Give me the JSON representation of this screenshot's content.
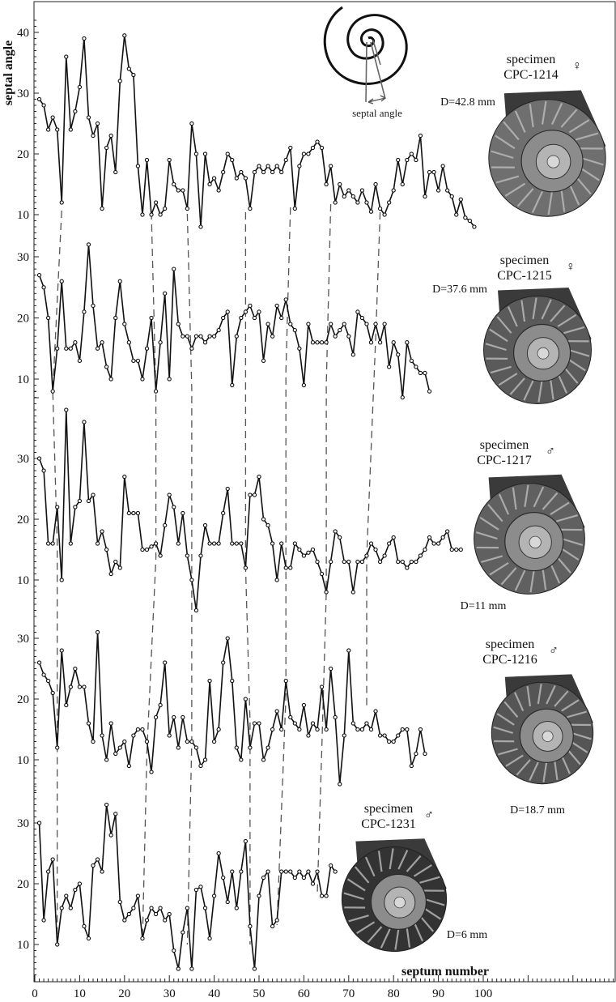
{
  "chart_data": {
    "type": "line",
    "xlabel": "septum number",
    "ylabel": "septal angle",
    "x_ticks": [
      0,
      10,
      20,
      30,
      40,
      50,
      60,
      70,
      80,
      90,
      100
    ],
    "inset_label": "septal angle",
    "specimen_word": "specimen",
    "panels": [
      {
        "id": "CPC-1214",
        "sex": "♀",
        "diameter": "D=42.8 mm",
        "ylim": [
          7,
          42
        ],
        "y_ticks": [
          10,
          20,
          30,
          40
        ],
        "values": [
          29,
          28,
          24,
          26,
          24,
          12,
          36,
          24,
          27,
          31,
          39,
          26,
          23,
          25,
          11,
          21,
          23,
          17,
          32,
          39.5,
          34,
          33,
          18,
          10,
          19,
          10,
          12,
          10,
          11,
          19,
          15,
          14,
          14,
          11,
          25,
          20,
          8,
          20,
          15,
          16,
          14,
          17,
          20,
          19,
          16,
          17,
          16,
          11,
          17,
          18,
          17,
          18,
          17,
          18,
          17,
          19,
          21,
          11,
          18,
          20,
          20,
          21,
          22,
          21,
          15,
          18,
          12,
          15,
          13,
          14,
          13,
          12,
          14,
          12,
          10.5,
          15,
          11,
          10,
          12,
          14,
          19,
          15,
          19,
          20,
          19,
          23,
          13,
          17,
          17,
          14,
          18,
          14,
          13,
          10,
          12.5,
          9.5,
          9,
          8
        ]
      },
      {
        "id": "CPC-1215",
        "sex": "♀",
        "diameter": "D=37.6 mm",
        "ylim": [
          7,
          33
        ],
        "y_ticks": [
          10,
          20,
          30
        ],
        "values": [
          27,
          25,
          20,
          8,
          15,
          26,
          15,
          15,
          16,
          13,
          21,
          32,
          22,
          15,
          16,
          12,
          10,
          20,
          26,
          19,
          16,
          13,
          13,
          10,
          15,
          20,
          8,
          16,
          24,
          10,
          28,
          19,
          17,
          17,
          15,
          17,
          17,
          16,
          17,
          17,
          18,
          20,
          21,
          9,
          17,
          20,
          21,
          22,
          20,
          21,
          13,
          19,
          17,
          22,
          20,
          23,
          19,
          18,
          15,
          9,
          19,
          16,
          16,
          16,
          16,
          19,
          17,
          18,
          19,
          17,
          14,
          21,
          20,
          19,
          16,
          19,
          16,
          19,
          12,
          16,
          14,
          7,
          16,
          13,
          12,
          11,
          11,
          8
        ]
      },
      {
        "id": "CPC-1217",
        "sex": "♂",
        "diameter": "D=11 mm",
        "ylim": [
          4,
          41
        ],
        "y_ticks": [
          10,
          20,
          30
        ],
        "values": [
          30,
          28,
          16,
          16,
          22,
          10,
          38,
          16,
          22,
          23,
          36,
          23,
          24,
          16,
          18,
          15,
          11,
          13,
          12,
          27,
          21,
          21,
          21,
          15,
          15,
          15.5,
          16,
          14,
          19,
          24,
          22,
          16,
          21,
          14,
          10,
          5,
          14,
          19,
          16,
          16,
          16,
          21,
          25,
          16,
          16,
          16,
          12,
          24,
          24,
          27,
          20,
          19,
          16,
          10,
          16,
          12,
          12,
          16,
          15,
          14,
          14.5,
          15,
          13,
          11,
          8,
          13,
          18,
          17,
          13,
          13,
          8,
          13,
          13,
          14,
          16,
          15,
          13,
          14,
          16,
          17,
          13,
          13,
          12,
          13,
          13,
          14,
          15,
          17,
          16,
          16,
          17,
          18,
          15,
          15,
          15
        ]
      },
      {
        "id": "CPC-1216",
        "sex": "♂",
        "diameter": "D=18.7 mm",
        "ylim": [
          5,
          32
        ],
        "y_ticks": [
          10,
          20,
          30
        ],
        "values": [
          26,
          24,
          23,
          21,
          12,
          28,
          19,
          22,
          25,
          22,
          22,
          16,
          13,
          31,
          14,
          10,
          16,
          11,
          12,
          13,
          9,
          14,
          15,
          15,
          13,
          8,
          17,
          19,
          26,
          14,
          17,
          12,
          17,
          13,
          13,
          12,
          9,
          10,
          23,
          13,
          15,
          26,
          30,
          23,
          12,
          10,
          20,
          12,
          16,
          16,
          10,
          12,
          15,
          18,
          15,
          23,
          17,
          16,
          15,
          19,
          14,
          16,
          15,
          22,
          15,
          25,
          17,
          6,
          14,
          28,
          16,
          15,
          15,
          16,
          15,
          18,
          14,
          14,
          13,
          13,
          14,
          15,
          15,
          9,
          11,
          15,
          11
        ]
      },
      {
        "id": "CPC-1231",
        "sex": "♂",
        "diameter": "D=6 mm",
        "ylim": [
          5,
          36
        ],
        "y_ticks": [
          10,
          20,
          30
        ],
        "values": [
          30,
          14,
          22,
          24,
          10,
          16,
          18,
          16,
          19,
          20,
          13,
          11,
          23,
          24,
          22,
          33,
          28,
          31.5,
          17,
          14,
          15,
          16,
          18,
          11,
          14,
          16,
          15,
          16,
          14,
          15,
          9,
          6,
          12,
          16,
          6,
          19,
          19.5,
          16,
          11,
          18,
          25,
          21,
          17,
          22,
          16,
          22,
          27,
          13,
          6,
          18,
          21,
          22,
          13,
          14,
          22,
          22,
          22,
          21,
          22,
          21,
          22,
          20,
          22,
          18,
          18,
          23,
          22
        ]
      }
    ]
  }
}
